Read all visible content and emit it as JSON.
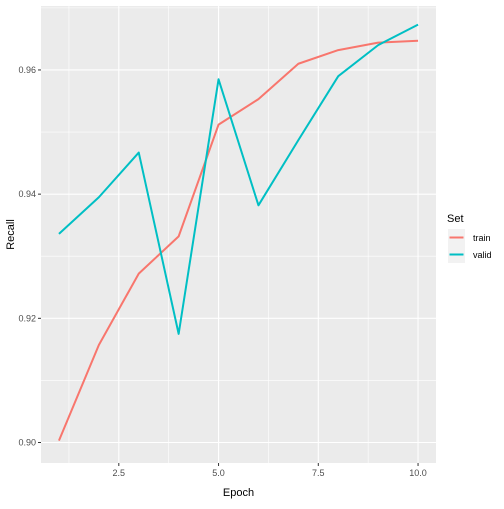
{
  "chart_data": {
    "type": "line",
    "xlabel": "Epoch",
    "ylabel": "Recall",
    "xlim": [
      0.55,
      10.45
    ],
    "ylim": [
      0.8967,
      0.9703
    ],
    "x_ticks": [
      2.5,
      5.0,
      7.5,
      10.0
    ],
    "x_tick_labels": [
      "2.5",
      "5.0",
      "7.5",
      "10.0"
    ],
    "y_ticks": [
      0.9,
      0.92,
      0.94,
      0.96
    ],
    "y_tick_labels": [
      "0.90",
      "0.92",
      "0.94",
      "0.96"
    ],
    "grid": true,
    "legend_title": "Set",
    "legend_position": "right",
    "x": [
      1,
      2,
      3,
      4,
      5,
      6,
      7,
      8,
      9,
      10
    ],
    "series": [
      {
        "name": "train",
        "color": "#F8766D",
        "values": [
          0.9003,
          0.9157,
          0.9272,
          0.9332,
          0.9512,
          0.9553,
          0.961,
          0.9632,
          0.9644,
          0.9647
        ]
      },
      {
        "name": "valid",
        "color": "#00BFC4",
        "values": [
          0.9336,
          0.9395,
          0.9467,
          0.9175,
          0.9585,
          0.9382,
          0.9487,
          0.959,
          0.964,
          0.9673
        ]
      }
    ]
  }
}
